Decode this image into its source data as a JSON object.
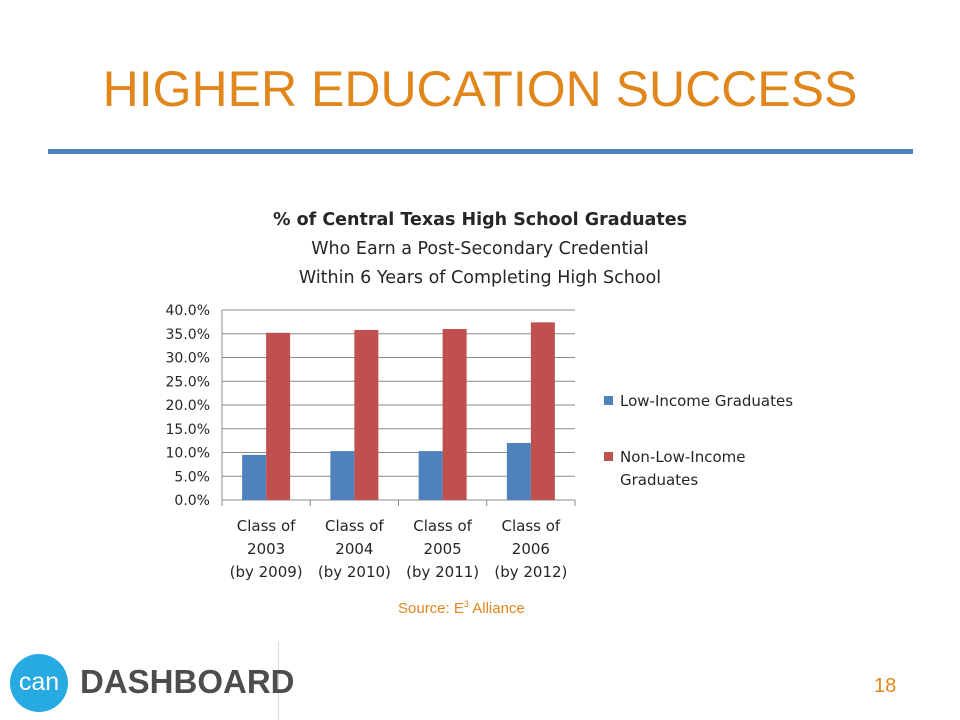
{
  "slide": {
    "title": "HIGHER EDUCATION SUCCESS",
    "source_prefix": "Source:  E",
    "source_sup": "3",
    "source_suffix": " Alliance",
    "page_number": "18"
  },
  "logo": {
    "circle_text": "can",
    "word": "DASHBOARD"
  },
  "chart_data": {
    "type": "bar",
    "title_lines": [
      "% of Central Texas High School Graduates",
      "Who Earn a Post-Secondary Credential",
      "Within 6 Years of Completing High School"
    ],
    "categories": [
      [
        "Class of",
        "2003",
        "(by 2009)"
      ],
      [
        "Class of",
        "2004",
        "(by 2010)"
      ],
      [
        "Class of",
        "2005",
        "(by 2011)"
      ],
      [
        "Class of",
        "2006",
        "(by 2012)"
      ]
    ],
    "series": [
      {
        "name": "Low-Income Graduates",
        "legend_lines": [
          "Low-Income Graduates"
        ],
        "color": "#4f81bd",
        "values": [
          9.5,
          10.3,
          10.3,
          12.0
        ]
      },
      {
        "name": "Non-Low-Income Graduates",
        "legend_lines": [
          "Non-Low-Income",
          "Graduates"
        ],
        "color": "#c0504d",
        "values": [
          35.2,
          35.8,
          36.0,
          37.4
        ]
      }
    ],
    "y_ticks": [
      "0.0%",
      "5.0%",
      "10.0%",
      "15.0%",
      "20.0%",
      "25.0%",
      "30.0%",
      "35.0%",
      "40.0%"
    ],
    "ylim": [
      0,
      40
    ],
    "grid": true,
    "legend_position": "right"
  }
}
